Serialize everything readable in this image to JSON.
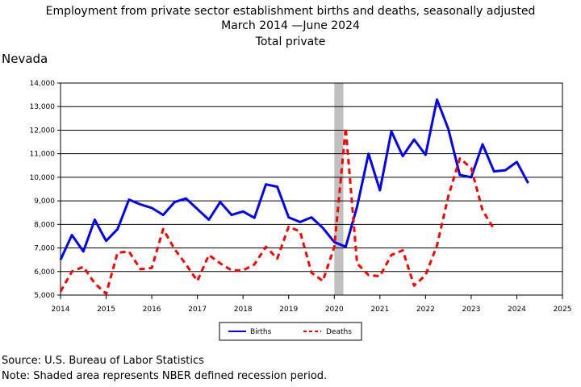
{
  "title": {
    "line1": "Employment from private sector establishment births and deaths, seasonally adjusted",
    "line2": "March 2014 —June 2024",
    "line3": "Total private"
  },
  "region": "Nevada",
  "footer": {
    "source": "Source: U.S. Bureau of Labor Statistics",
    "note": "Note: Shaded area represents NBER defined recession period."
  },
  "chart_data": {
    "type": "line",
    "xlim": [
      2014,
      2025
    ],
    "ylim": [
      5000,
      14000
    ],
    "x_ticks": [
      2014,
      2015,
      2016,
      2017,
      2018,
      2019,
      2020,
      2021,
      2022,
      2023,
      2024,
      2025
    ],
    "x_tick_labels": [
      "2014",
      "2015",
      "2016",
      "2017",
      "2018",
      "2019",
      "2020",
      "2021",
      "2022",
      "2023",
      "2024",
      "2025"
    ],
    "y_ticks": [
      5000,
      6000,
      7000,
      8000,
      9000,
      10000,
      11000,
      12000,
      13000,
      14000
    ],
    "y_tick_labels": [
      "5,000",
      "6,000",
      "7,000",
      "8,000",
      "9,000",
      "10,000",
      "11,000",
      "12,000",
      "13,000",
      "14,000"
    ],
    "grid": "horizontal",
    "legend_position": "bottom-center",
    "recession": [
      2020.0,
      2020.2
    ],
    "recession_color": "#c0c0c0",
    "series": [
      {
        "name": "Births",
        "color": "#0000ff",
        "dash": "solid",
        "x": [
          2014.0,
          2014.25,
          2014.5,
          2014.75,
          2015.0,
          2015.25,
          2015.5,
          2015.75,
          2016.0,
          2016.25,
          2016.5,
          2016.75,
          2017.0,
          2017.25,
          2017.5,
          2017.75,
          2018.0,
          2018.25,
          2018.5,
          2018.75,
          2019.0,
          2019.25,
          2019.5,
          2019.75,
          2020.0,
          2020.25,
          2020.5,
          2020.75,
          2021.0,
          2021.25,
          2021.5,
          2021.75,
          2022.0,
          2022.25,
          2022.5,
          2022.75,
          2023.0,
          2023.25,
          2023.5,
          2023.75,
          2024.0,
          2024.25
        ],
        "values": [
          6500,
          7550,
          6850,
          8200,
          7300,
          7800,
          9050,
          8850,
          8700,
          8400,
          8950,
          9100,
          8650,
          8200,
          8950,
          8400,
          8550,
          8280,
          9700,
          9600,
          8300,
          8100,
          8300,
          7850,
          7250,
          7050,
          8750,
          11000,
          9450,
          11950,
          10900,
          11600,
          10950,
          13300,
          12050,
          10100,
          10000,
          11400,
          10250,
          10300,
          10650,
          9750
        ]
      },
      {
        "name": "Deaths",
        "color": "#ff0000",
        "dash": "dashed",
        "x": [
          2014.0,
          2014.25,
          2014.5,
          2014.75,
          2015.0,
          2015.25,
          2015.5,
          2015.75,
          2016.0,
          2016.25,
          2016.5,
          2016.75,
          2017.0,
          2017.25,
          2017.5,
          2017.75,
          2018.0,
          2018.25,
          2018.5,
          2018.75,
          2019.0,
          2019.25,
          2019.5,
          2019.75,
          2020.0,
          2020.25,
          2020.5,
          2020.75,
          2021.0,
          2021.25,
          2021.5,
          2021.75,
          2022.0,
          2022.25,
          2022.5,
          2022.75,
          2023.0,
          2023.25,
          2023.5
        ],
        "values": [
          5150,
          6000,
          6200,
          5500,
          5050,
          6800,
          6850,
          6100,
          6150,
          7800,
          6950,
          6300,
          5600,
          6700,
          6350,
          6050,
          6050,
          6300,
          7050,
          6550,
          7900,
          7700,
          5950,
          5600,
          7050,
          12100,
          6350,
          5850,
          5800,
          6700,
          6900,
          5400,
          5850,
          7100,
          9200,
          10800,
          10400,
          8600,
          7800
        ]
      }
    ]
  }
}
